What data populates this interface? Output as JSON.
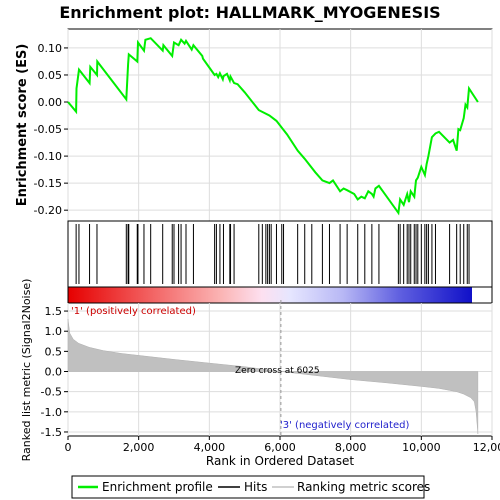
{
  "chart_data": {
    "type": "line",
    "title": "Enrichment plot: HALLMARK_MYOGENESIS",
    "es_panel": {
      "ylabel": "Enrichment score (ES)",
      "ylim": [
        -0.22,
        0.135
      ],
      "yticks": [
        0.1,
        0.05,
        0.0,
        -0.05,
        -0.1,
        -0.15,
        -0.2
      ],
      "ytick_labels": [
        "0.10",
        "0.05",
        "0.00",
        "-0.05",
        "-0.10",
        "-0.15",
        "-0.20"
      ],
      "series": [
        {
          "name": "Enrichment profile",
          "color": "#00ee00",
          "x": [
            0,
            230,
            240,
            310,
            610,
            630,
            820,
            830,
            1650,
            1700,
            1720,
            1960,
            1980,
            2150,
            2190,
            2340,
            2680,
            2700,
            2950,
            3000,
            3130,
            3200,
            3300,
            3340,
            3500,
            3550,
            3800,
            3820,
            4020,
            4150,
            4200,
            4250,
            4300,
            4380,
            4400,
            4500,
            4580,
            4600,
            4700,
            4800,
            5000,
            5400,
            5700,
            5900,
            6200,
            6500,
            6700,
            7000,
            7200,
            7400,
            7500,
            7700,
            7800,
            7900,
            8100,
            8200,
            8300,
            8400,
            8500,
            8600,
            8650,
            8700,
            8800,
            9350,
            9400,
            9500,
            9600,
            9650,
            9700,
            9800,
            9850,
            9900,
            10000,
            10100,
            10150,
            10200,
            10300,
            10400,
            10500,
            10800,
            10900,
            11000,
            11050,
            11100,
            11200,
            11250,
            11300,
            11350,
            11600
          ],
          "y": [
            0.0,
            -0.018,
            0.025,
            0.06,
            0.035,
            0.065,
            0.05,
            0.075,
            0.005,
            0.07,
            0.088,
            0.075,
            0.11,
            0.095,
            0.115,
            0.118,
            0.095,
            0.105,
            0.085,
            0.11,
            0.105,
            0.115,
            0.108,
            0.113,
            0.097,
            0.105,
            0.085,
            0.08,
            0.062,
            0.05,
            0.052,
            0.046,
            0.053,
            0.042,
            0.048,
            0.052,
            0.04,
            0.047,
            0.035,
            0.033,
            0.018,
            -0.015,
            -0.025,
            -0.035,
            -0.06,
            -0.09,
            -0.105,
            -0.13,
            -0.145,
            -0.15,
            -0.145,
            -0.165,
            -0.16,
            -0.163,
            -0.17,
            -0.18,
            -0.175,
            -0.178,
            -0.165,
            -0.17,
            -0.175,
            -0.16,
            -0.155,
            -0.205,
            -0.18,
            -0.19,
            -0.17,
            -0.185,
            -0.165,
            -0.175,
            -0.145,
            -0.14,
            -0.12,
            -0.135,
            -0.115,
            -0.1,
            -0.065,
            -0.058,
            -0.055,
            -0.075,
            -0.07,
            -0.09,
            -0.05,
            -0.052,
            -0.03,
            -0.005,
            -0.01,
            0.025,
            0.0
          ]
        }
      ]
    },
    "hits_panel": {
      "series_name": "Hits",
      "hit_positions": [
        230,
        310,
        610,
        820,
        1650,
        1700,
        1720,
        1960,
        1980,
        2150,
        2340,
        2680,
        2950,
        3000,
        3130,
        3200,
        3340,
        3550,
        4150,
        4200,
        4300,
        4400,
        4580,
        4600,
        4700,
        5400,
        5500,
        5600,
        5650,
        5700,
        5750,
        5900,
        6050,
        6100,
        6500,
        6700,
        6900,
        7200,
        7400,
        7700,
        7900,
        8200,
        8400,
        8600,
        8800,
        9350,
        9400,
        9500,
        9600,
        9650,
        9700,
        9800,
        9850,
        9900,
        10000,
        10100,
        10150,
        10200,
        10300,
        10400,
        10800,
        11000,
        11100,
        11200,
        11300,
        11350
      ]
    },
    "metric_panel": {
      "ylabel": "Ranked list metric (Signal2Noise)",
      "series_name": "Ranking metric scores",
      "ylim": [
        -1.6,
        1.7
      ],
      "yticks": [
        1.5,
        1.0,
        0.5,
        0.0,
        -0.5,
        -1.0,
        -1.5
      ],
      "ytick_labels": [
        "1.5",
        "1.0",
        "0.5",
        "0.0",
        "-0.5",
        "-1.0",
        "-1.5"
      ],
      "x": [
        0,
        50,
        150,
        300,
        600,
        1000,
        1500,
        2000,
        3000,
        4000,
        5000,
        6025,
        7000,
        8000,
        9000,
        10000,
        10500,
        11000,
        11200,
        11400,
        11500,
        11550,
        11600
      ],
      "y": [
        1.3,
        0.95,
        0.8,
        0.7,
        0.6,
        0.52,
        0.45,
        0.4,
        0.3,
        0.21,
        0.12,
        0.0,
        -0.1,
        -0.2,
        -0.28,
        -0.37,
        -0.42,
        -0.5,
        -0.56,
        -0.65,
        -0.75,
        -1.0,
        -1.55
      ],
      "zero_cross_label": "Zero cross at 6025",
      "zero_cross": 6025,
      "pos_label": "'1' (positively correlated)",
      "neg_label": "'3' (negatively correlated)"
    },
    "xaxis": {
      "xlabel": "Rank in Ordered Dataset",
      "xlim": [
        0,
        12000
      ],
      "xticks": [
        0,
        2000,
        4000,
        6000,
        8000,
        10000,
        12000
      ],
      "xtick_labels": [
        "0",
        "2,000",
        "4,000",
        "6,000",
        "8,000",
        "10,000",
        "12,000"
      ],
      "n_genes": 11600
    },
    "legend": {
      "placement": "bottom",
      "items": [
        {
          "label": "Enrichment profile",
          "color": "#00ee00"
        },
        {
          "label": "Hits",
          "color": "#000000"
        },
        {
          "label": "Ranking metric scores",
          "color": "#c0c0c0"
        }
      ]
    },
    "colors": {
      "profile": "#00ee00",
      "metric_fill": "#c0c0c0",
      "grid": "#dddddd",
      "pos_text": "#cc0000",
      "neg_text": "#2222cc"
    },
    "grid": true
  }
}
